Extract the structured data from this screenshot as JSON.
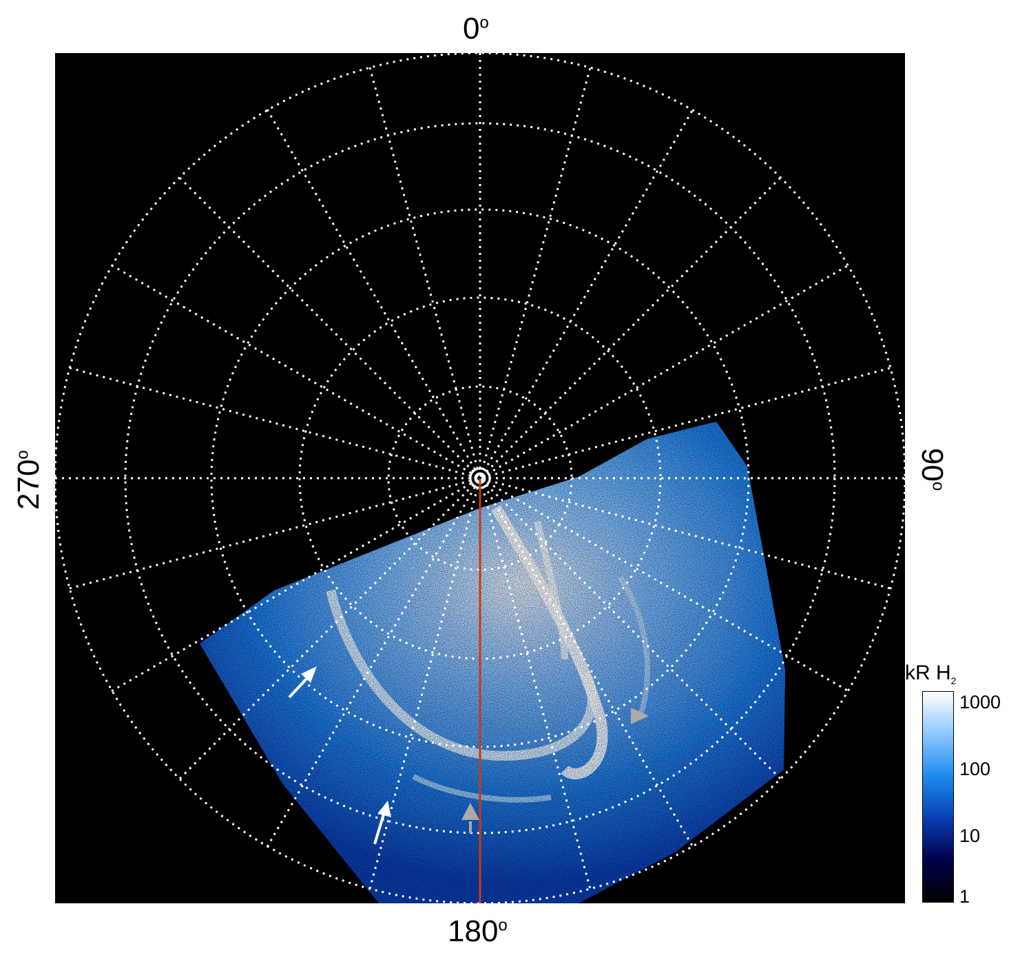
{
  "polar_plot": {
    "labels": {
      "top": "0",
      "right": "90",
      "bottom": "180",
      "left": "270",
      "degree_symbol": "o"
    },
    "grid": true,
    "meridian_line_color": "#c83a14",
    "arrow_colors": {
      "white": "#ffffff",
      "gray": "#aaaaaa"
    }
  },
  "colorbar": {
    "title": "kR H",
    "title_subscript": "2",
    "ticks": [
      "1000",
      "100",
      "10",
      "1"
    ],
    "scale": "log",
    "colors": [
      "#000000",
      "#00004a",
      "#0a3fb4",
      "#1e8cf0",
      "#8cc8ff",
      "#ffffff"
    ]
  }
}
